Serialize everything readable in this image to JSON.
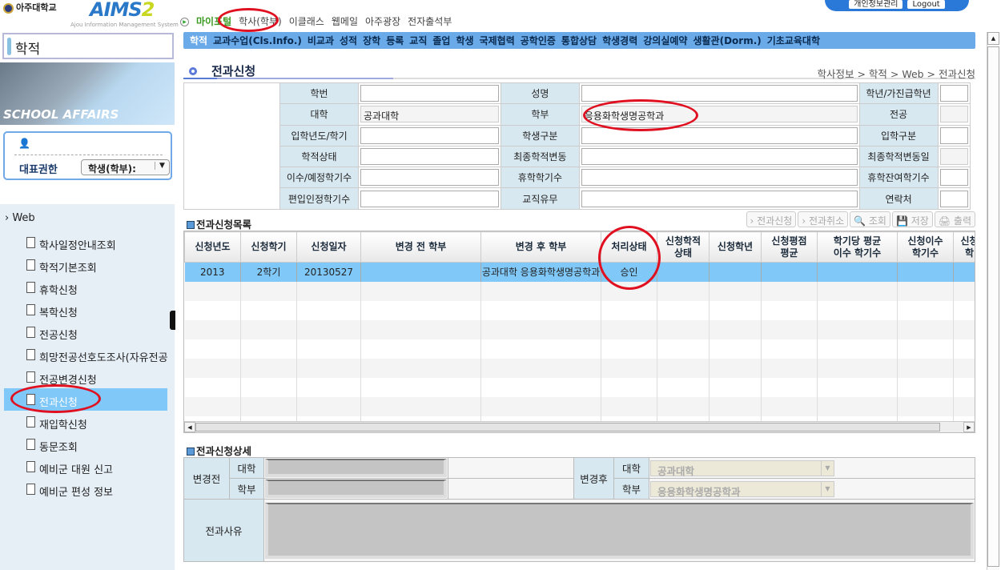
{
  "header": {
    "university": "아주대학교",
    "app_name": "AIMS",
    "app_version": "2",
    "app_subtitle": "Ajou Information Management System",
    "top_nav": [
      "마이포털",
      "학사(학부)",
      "이클래스",
      "웹메일",
      "아주광장",
      "전자출석부"
    ],
    "links": [
      "개인정보관리",
      "Logout"
    ]
  },
  "sidebar": {
    "title": "학적",
    "banner": "SCHOOL AFFAIRS",
    "role_label": "대표권한",
    "role_value": "학생(학부):",
    "tree_root": "Web",
    "items": [
      "학사일정안내조회",
      "학적기본조회",
      "휴학신청",
      "복학신청",
      "전공신청",
      "희망전공선호도조사(자유전공",
      "전공변경신청",
      "전과신청",
      "재입학신청",
      "동문조회",
      "예비군 대원 신고",
      "예비군 편성 정보"
    ],
    "active_index": 7
  },
  "menu": [
    "학적",
    "교과수업(Cls.Info.)",
    "비교과",
    "성적",
    "장학",
    "등록",
    "교직",
    "졸업",
    "학생",
    "국제협력",
    "공학인증",
    "통합상담",
    "학생경력",
    "강의실예약",
    "생활관(Dorm.)",
    "기초교육대학"
  ],
  "page": {
    "title": "전과신청",
    "breadcrumb": "학사정보 > 학적 > Web > 전과신청"
  },
  "info": [
    [
      {
        "label": "학번",
        "value": ""
      },
      {
        "label": "성명",
        "value": ""
      },
      {
        "label": "학년/가진급학년",
        "value": ""
      }
    ],
    [
      {
        "label": "대학",
        "value": "공과대학",
        "ro": true
      },
      {
        "label": "학부",
        "value": "응용화학생명공학과",
        "ro": true
      },
      {
        "label": "전공",
        "value": "",
        "ro": true
      }
    ],
    [
      {
        "label": "입학년도/학기",
        "value": ""
      },
      {
        "label": "학생구분",
        "value": ""
      },
      {
        "label": "입학구분",
        "value": ""
      }
    ],
    [
      {
        "label": "학적상태",
        "value": ""
      },
      {
        "label": "최종학적변동",
        "value": ""
      },
      {
        "label": "최종학적변동일",
        "value": "",
        "ro": true
      }
    ],
    [
      {
        "label": "이수/예정학기수",
        "value": ""
      },
      {
        "label": "휴학학기수",
        "value": ""
      },
      {
        "label": "휴학잔여학기수",
        "value": ""
      }
    ],
    [
      {
        "label": "편입인정학기수",
        "value": ""
      },
      {
        "label": "교직유무",
        "value": ""
      },
      {
        "label": "연락처",
        "value": ""
      }
    ]
  ],
  "list": {
    "title": "전과신청목록",
    "buttons": [
      "전과신청",
      "전과취소",
      "조회",
      "저장",
      "출력"
    ],
    "columns": [
      "신청년도",
      "신청학기",
      "신청일자",
      "변경 전 학부",
      "변경 후 학부",
      "처리상태",
      "신청학적\n상태",
      "신청학년",
      "신청평점\n평균",
      "학기당 평균\n이수 학기수",
      "신청이수\n학기수",
      "신청\n학"
    ],
    "rows": [
      [
        "2013",
        "2학기",
        "20130527",
        "",
        "공과대학 응용화학생명공학과",
        "승인",
        "",
        "",
        "",
        "",
        "",
        ""
      ]
    ]
  },
  "detail": {
    "title": "전과신청상세",
    "before": "변경전",
    "after": "변경후",
    "college": "대학",
    "dept": "학부",
    "after_college": "공과대학",
    "after_dept": "응용화학생명공학과",
    "reason": "전과사유"
  }
}
